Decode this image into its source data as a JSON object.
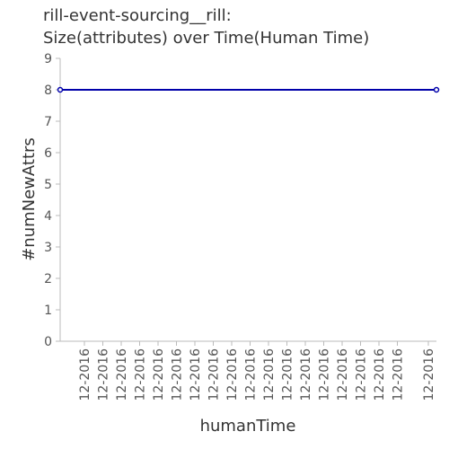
{
  "chart_data": {
    "type": "line",
    "title_line1": "rill-event-sourcing__rill:",
    "title_line2": "Size(attributes) over Time(Human Time)",
    "xlabel": "humanTime",
    "ylabel": "#numNewAttrs",
    "ylim": [
      0,
      9
    ],
    "yticks": [
      0,
      1,
      2,
      3,
      4,
      5,
      6,
      7,
      8,
      9
    ],
    "xtick_labels": [
      "12-2016",
      "12-2016",
      "12-2016",
      "12-2016",
      "12-2016",
      "12-2016",
      "12-2016",
      "12-2016",
      "12-2016",
      "12-2016",
      "12-2016",
      "12-2016",
      "12-2016",
      "12-2016",
      "12-2016",
      "12-2016",
      "12-2016",
      "12-2016",
      "12-2016"
    ],
    "series": [
      {
        "x": [
          "12-2016",
          "12-2016"
        ],
        "values": [
          8,
          8
        ],
        "color": "#0000aa"
      }
    ],
    "grid": false
  }
}
